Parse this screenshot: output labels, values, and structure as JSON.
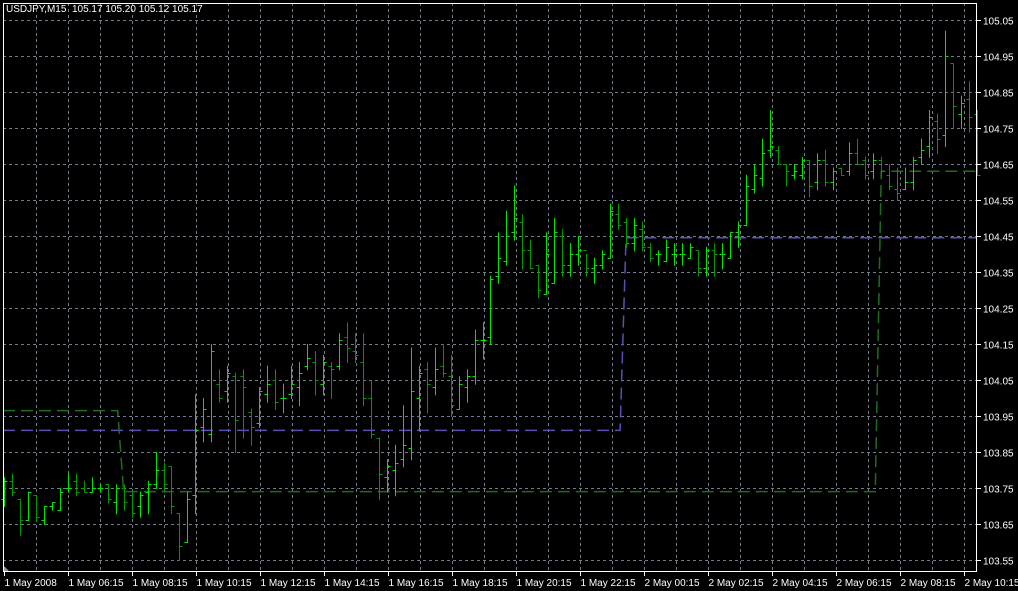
{
  "header": {
    "symbol": "USDJPY,M15",
    "ohlc_readout": "105.17 105.20 105.12 105.17"
  },
  "colors": {
    "background": "#000000",
    "grid": "#6e7c8c",
    "axis": "#ffffff",
    "bar_up": "#00e600",
    "bar_down": "#009a00",
    "level_line_purple": "#5a50b4",
    "level_line_green": "#1e6e1e"
  },
  "chart_data": {
    "type": "bar",
    "style": "ohlc",
    "grid": true,
    "ylim": [
      103.52,
      105.1
    ],
    "y_ticks": [
      "105.05",
      "104.95",
      "104.85",
      "104.75",
      "104.65",
      "104.55",
      "104.45",
      "104.35",
      "104.25",
      "104.15",
      "104.05",
      "103.95",
      "103.85",
      "103.75",
      "103.65",
      "103.55"
    ],
    "x_tick_labels": [
      "1 May 2008",
      "1 May 06:15",
      "1 May 08:15",
      "1 May 10:15",
      "1 May 12:15",
      "1 May 14:15",
      "1 May 16:15",
      "1 May 18:15",
      "1 May 20:15",
      "1 May 22:15",
      "2 May 00:15",
      "2 May 02:15",
      "2 May 04:15",
      "2 May 06:15",
      "2 May 08:15",
      "2 May 10:15"
    ],
    "bars_ohlc": [
      [
        103.72,
        103.78,
        103.7,
        103.77
      ],
      [
        103.77,
        103.79,
        103.73,
        103.74
      ],
      [
        103.72,
        103.72,
        103.62,
        103.66
      ],
      [
        103.66,
        103.74,
        103.66,
        103.74
      ],
      [
        103.73,
        103.73,
        103.66,
        103.67
      ],
      [
        103.66,
        103.7,
        103.65,
        103.7
      ],
      [
        103.7,
        103.71,
        103.69,
        103.71
      ],
      [
        103.69,
        103.75,
        103.69,
        103.74
      ],
      [
        103.75,
        103.79,
        103.74,
        103.75
      ],
      [
        103.77,
        103.79,
        103.73,
        103.74
      ],
      [
        103.75,
        103.77,
        103.74,
        103.74
      ],
      [
        103.74,
        103.78,
        103.74,
        103.75
      ],
      [
        103.75,
        103.76,
        103.74,
        103.75
      ],
      [
        103.76,
        103.76,
        103.71,
        103.72
      ],
      [
        103.71,
        103.76,
        103.68,
        103.75
      ],
      [
        103.75,
        103.76,
        103.69,
        103.71
      ],
      [
        103.73,
        103.74,
        103.67,
        103.68
      ],
      [
        103.7,
        103.74,
        103.67,
        103.73
      ],
      [
        103.74,
        103.77,
        103.68,
        103.76
      ],
      [
        103.76,
        103.85,
        103.75,
        103.8
      ],
      [
        103.8,
        103.82,
        103.74,
        103.76
      ],
      [
        103.81,
        103.81,
        103.68,
        103.7
      ],
      [
        103.68,
        103.68,
        103.55,
        103.59
      ],
      [
        103.6,
        103.74,
        103.6,
        103.72
      ],
      [
        103.73,
        104.01,
        103.68,
        103.91
      ],
      [
        103.92,
        104.0,
        103.88,
        103.97
      ],
      [
        103.9,
        104.15,
        103.88,
        104.13
      ],
      [
        104.04,
        104.08,
        103.99,
        104.0
      ],
      [
        104.02,
        104.09,
        103.99,
        104.07
      ],
      [
        104.06,
        104.07,
        103.85,
        103.94
      ],
      [
        104.06,
        104.08,
        103.89,
        104.03
      ],
      [
        103.96,
        103.97,
        103.87,
        103.92
      ],
      [
        103.93,
        104.03,
        103.92,
        104.02
      ],
      [
        104.01,
        104.09,
        103.99,
        104.04
      ],
      [
        104.05,
        104.08,
        103.97,
        103.99
      ],
      [
        104.0,
        104.04,
        103.96,
        104.0
      ],
      [
        104.01,
        104.09,
        104.0,
        104.04
      ],
      [
        104.03,
        104.1,
        103.98,
        104.07
      ],
      [
        104.09,
        104.15,
        104.08,
        104.11
      ],
      [
        104.1,
        104.13,
        104.01,
        104.05
      ],
      [
        104.04,
        104.12,
        104.01,
        104.1
      ],
      [
        104.09,
        104.1,
        104.0,
        104.08
      ],
      [
        104.09,
        104.18,
        104.08,
        104.16
      ],
      [
        104.17,
        104.21,
        104.1,
        104.14
      ],
      [
        104.13,
        104.18,
        104.1,
        104.12
      ],
      [
        104.1,
        104.18,
        103.98,
        104.0
      ],
      [
        104.0,
        104.05,
        103.89,
        103.9
      ],
      [
        103.89,
        103.89,
        103.72,
        103.79
      ],
      [
        103.78,
        103.83,
        103.74,
        103.81
      ],
      [
        103.8,
        103.87,
        103.73,
        103.82
      ],
      [
        103.83,
        103.98,
        103.81,
        103.87
      ],
      [
        103.86,
        104.14,
        103.83,
        104.02
      ],
      [
        104.0,
        104.09,
        103.91,
        104.07
      ],
      [
        104.08,
        104.1,
        103.96,
        104.04
      ],
      [
        104.03,
        104.14,
        104.01,
        104.08
      ],
      [
        104.09,
        104.15,
        104.06,
        104.07
      ],
      [
        104.06,
        104.12,
        103.95,
        103.98
      ],
      [
        103.97,
        104.06,
        103.97,
        104.04
      ],
      [
        104.03,
        104.08,
        103.99,
        104.06
      ],
      [
        104.06,
        104.19,
        104.04,
        104.16
      ],
      [
        104.16,
        104.21,
        104.11,
        104.16
      ],
      [
        104.17,
        104.34,
        104.15,
        104.33
      ],
      [
        104.34,
        104.46,
        104.32,
        104.39
      ],
      [
        104.38,
        104.52,
        104.37,
        104.45
      ],
      [
        104.46,
        104.59,
        104.44,
        104.5
      ],
      [
        104.49,
        104.51,
        104.36,
        104.41
      ],
      [
        104.41,
        104.44,
        104.36,
        104.36
      ],
      [
        104.37,
        104.37,
        104.28,
        104.3
      ],
      [
        104.29,
        104.46,
        104.29,
        104.4
      ],
      [
        104.32,
        104.5,
        104.32,
        104.46
      ],
      [
        104.45,
        104.47,
        104.34,
        104.37
      ],
      [
        104.37,
        104.43,
        104.34,
        104.4
      ],
      [
        104.4,
        104.45,
        104.37,
        104.41
      ],
      [
        104.41,
        104.4,
        104.34,
        104.36
      ],
      [
        104.36,
        104.39,
        104.32,
        104.37
      ],
      [
        104.37,
        104.41,
        104.36,
        104.4
      ],
      [
        104.39,
        104.54,
        104.39,
        104.52
      ],
      [
        104.51,
        104.54,
        104.47,
        104.48
      ],
      [
        104.49,
        104.5,
        104.42,
        104.43
      ],
      [
        104.43,
        104.5,
        104.41,
        104.48
      ],
      [
        104.47,
        104.49,
        104.41,
        104.42
      ],
      [
        104.42,
        104.43,
        104.38,
        104.39
      ],
      [
        104.4,
        104.41,
        104.37,
        104.4
      ],
      [
        104.38,
        104.44,
        104.38,
        104.42
      ],
      [
        104.4,
        104.43,
        104.37,
        104.4
      ],
      [
        104.4,
        104.43,
        104.37,
        104.4
      ],
      [
        104.39,
        104.43,
        104.39,
        104.42
      ],
      [
        104.41,
        104.41,
        104.34,
        104.36
      ],
      [
        104.36,
        104.42,
        104.34,
        104.41
      ],
      [
        104.41,
        104.43,
        104.34,
        104.4
      ],
      [
        104.4,
        104.43,
        104.36,
        104.4
      ],
      [
        104.39,
        104.46,
        104.39,
        104.46
      ],
      [
        104.46,
        104.49,
        104.42,
        104.48
      ],
      [
        104.48,
        104.62,
        104.48,
        104.59
      ],
      [
        104.58,
        104.65,
        104.57,
        104.62
      ],
      [
        104.61,
        104.72,
        104.59,
        104.68
      ],
      [
        104.69,
        104.8,
        104.67,
        104.7
      ],
      [
        104.69,
        104.7,
        104.65,
        104.65
      ],
      [
        104.65,
        104.65,
        104.59,
        104.63
      ],
      [
        104.62,
        104.65,
        104.61,
        104.63
      ],
      [
        104.62,
        104.67,
        104.61,
        104.66
      ],
      [
        104.66,
        104.66,
        104.56,
        104.59
      ],
      [
        104.6,
        104.68,
        104.58,
        104.66
      ],
      [
        104.66,
        104.69,
        104.59,
        104.6
      ],
      [
        104.6,
        104.64,
        104.58,
        104.63
      ],
      [
        104.64,
        104.64,
        104.62,
        104.62
      ],
      [
        104.63,
        104.71,
        104.62,
        104.68
      ],
      [
        104.68,
        104.72,
        104.65,
        104.65
      ],
      [
        104.66,
        104.67,
        104.61,
        104.62
      ],
      [
        104.63,
        104.68,
        104.61,
        104.66
      ],
      [
        104.66,
        104.67,
        104.62,
        104.63
      ],
      [
        104.62,
        104.65,
        104.58,
        104.59
      ],
      [
        104.58,
        104.64,
        104.55,
        104.57
      ],
      [
        104.58,
        104.64,
        104.58,
        104.6
      ],
      [
        104.6,
        104.67,
        104.58,
        104.66
      ],
      [
        104.67,
        104.72,
        104.65,
        104.69
      ],
      [
        104.7,
        104.8,
        104.67,
        104.78
      ],
      [
        104.77,
        104.79,
        104.68,
        104.72
      ],
      [
        104.73,
        105.02,
        104.7,
        104.95
      ],
      [
        104.93,
        104.93,
        104.75,
        104.81
      ],
      [
        104.79,
        104.84,
        104.75,
        104.82
      ],
      [
        104.83,
        104.88,
        104.74,
        104.78
      ],
      [
        104.79,
        104.8,
        104.62,
        104.62
      ]
    ],
    "level_lines": [
      {
        "color": "#5a50b4",
        "steps": [
          {
            "from_bar": 0,
            "to_bar": 77,
            "price": 103.91
          },
          {
            "from_bar": 78,
            "to_bar": 122,
            "price": 104.445
          }
        ]
      },
      {
        "color": "#1e6e1e",
        "steps": [
          {
            "from_bar": 0,
            "to_bar": 14,
            "price": 103.965
          },
          {
            "from_bar": 15,
            "to_bar": 109,
            "price": 103.74
          },
          {
            "from_bar": 110,
            "to_bar": 122,
            "price": 104.63
          }
        ]
      }
    ]
  }
}
